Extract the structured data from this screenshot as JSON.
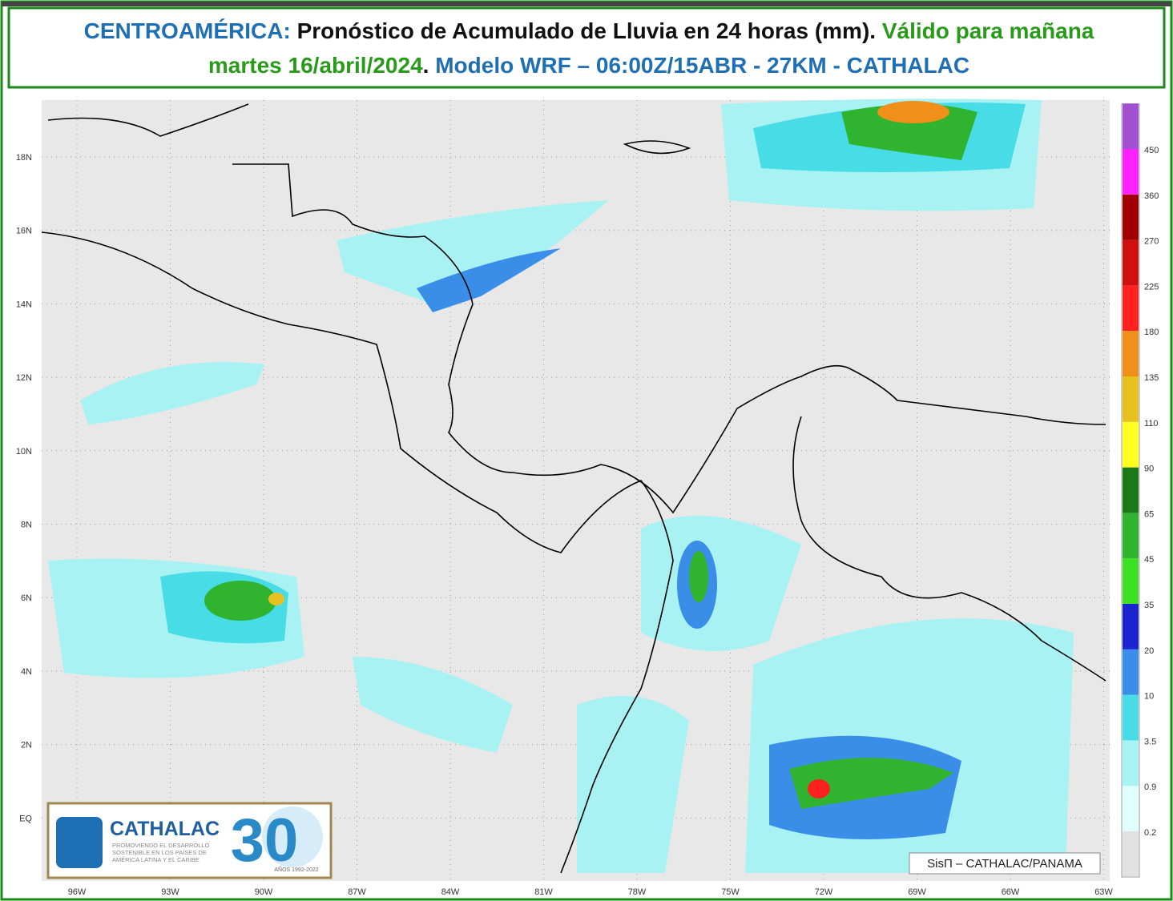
{
  "header": {
    "parts": [
      {
        "text": "CENTROAMÉRICA:",
        "color": "#1f6fb5"
      },
      {
        "text": " Pronóstico de Acumulado de Lluvia en 24 horas (mm).",
        "color": "#111111"
      },
      {
        "text": " Válido para mañana",
        "color": "#2a9a1a"
      }
    ],
    "parts2": [
      {
        "text": "martes 16/abril/2024",
        "color": "#2a9a1a"
      },
      {
        "text": ".",
        "color": "#111111"
      },
      {
        "text": " Modelo WRF – 06:00Z/15ABR - 27KM - CATHALAC",
        "color": "#1f6fb5"
      }
    ]
  },
  "map": {
    "lat_labels": [
      "18N",
      "16N",
      "14N",
      "12N",
      "10N",
      "8N",
      "6N",
      "4N",
      "2N",
      "EQ"
    ],
    "lon_labels": [
      "96W",
      "93W",
      "90W",
      "87W",
      "84W",
      "81W",
      "78W",
      "75W",
      "72W",
      "69W",
      "66W",
      "63W"
    ],
    "colorbar": [
      {
        "label": "0.2",
        "color": "#e0ffff"
      },
      {
        "label": "0.9",
        "color": "#a8f2f4"
      },
      {
        "label": "3.5",
        "color": "#48dce6"
      },
      {
        "label": "10",
        "color": "#3a8ee8"
      },
      {
        "label": "20",
        "color": "#1a24d0"
      },
      {
        "label": "35",
        "color": "#3ee024"
      },
      {
        "label": "45",
        "color": "#30b430"
      },
      {
        "label": "65",
        "color": "#1a7a1a"
      },
      {
        "label": "90",
        "color": "#ffff20"
      },
      {
        "label": "110",
        "color": "#e8c020"
      },
      {
        "label": "135",
        "color": "#f0901a"
      },
      {
        "label": "180",
        "color": "#ff2020"
      },
      {
        "label": "225",
        "color": "#d01010"
      },
      {
        "label": "270",
        "color": "#a00000"
      },
      {
        "label": "360",
        "color": "#ff20ff"
      },
      {
        "label": "450",
        "color": "#a050d0"
      }
    ],
    "below_color": "#e2e2e2",
    "credit": "SisΠ – CATHALAC/PANAMA"
  },
  "logo": {
    "name": "CATHALAC",
    "tagline": [
      "PROMOVIENDO EL DESARROLLO",
      "SOSTENIBLE EN LOS PAÍSES DE",
      "AMÉRICA LATINA Y EL CARIBE"
    ],
    "anniversary": "30",
    "years": "AÑOS 1992-2022"
  }
}
